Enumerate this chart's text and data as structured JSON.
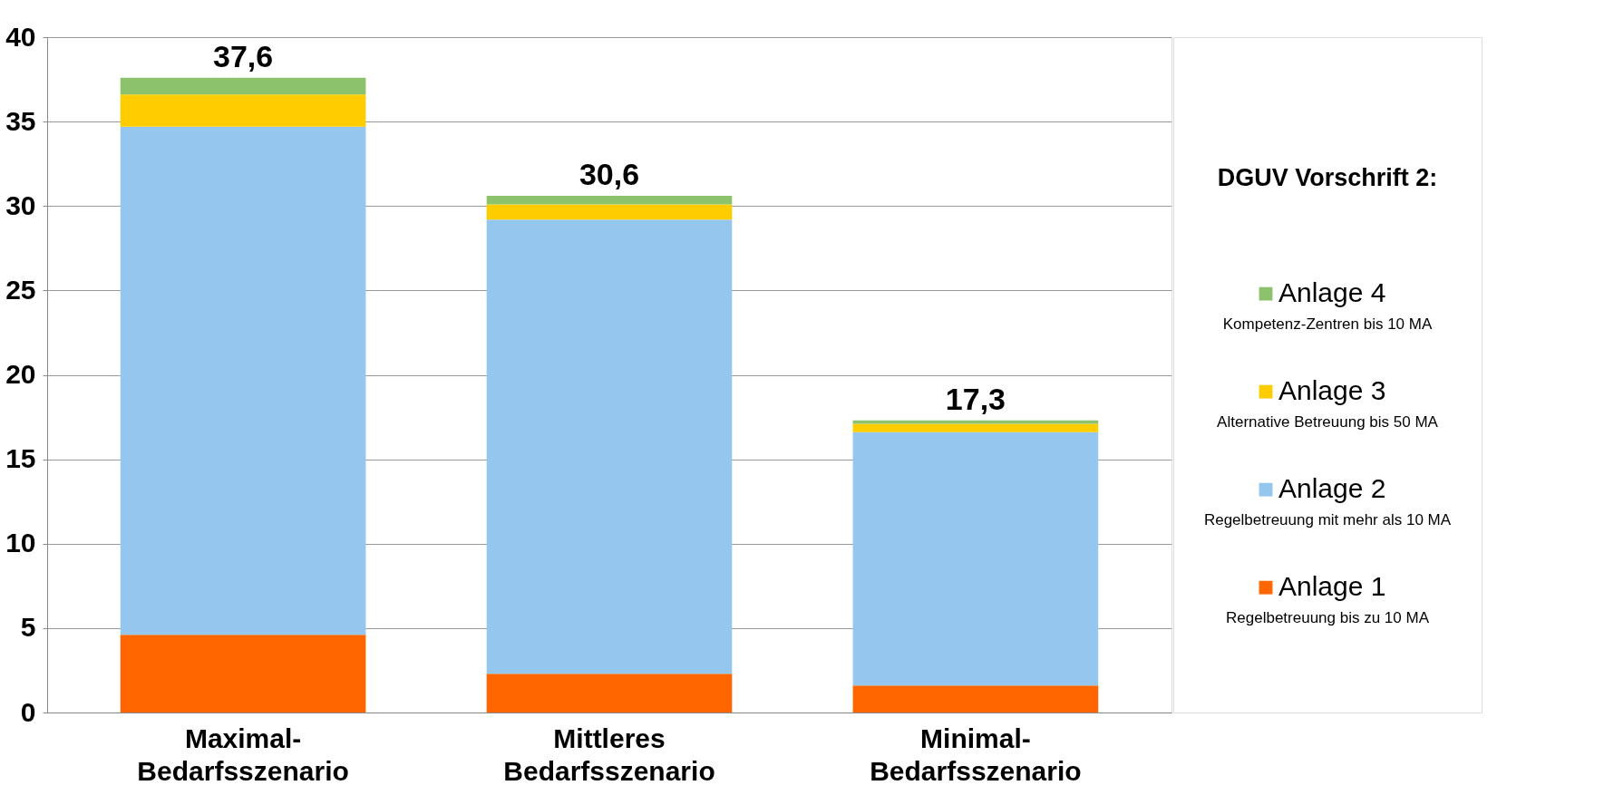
{
  "chart_data": {
    "type": "bar",
    "stacked": true,
    "categories": [
      "Maximal-Bedarfsszenario",
      "Mittleres Bedarfsszenario",
      "Minimal-Bedarfsszenario"
    ],
    "series": [
      {
        "name": "Anlage 1",
        "color": "#ff6600",
        "values": [
          4.6,
          2.3,
          1.6
        ]
      },
      {
        "name": "Anlage 2",
        "color": "#95c6ee",
        "values": [
          30.1,
          26.9,
          15.0
        ]
      },
      {
        "name": "Anlage 3",
        "color": "#ffcc00",
        "values": [
          1.9,
          0.9,
          0.5
        ]
      },
      {
        "name": "Anlage 4",
        "color": "#8cc26b",
        "values": [
          1.0,
          0.5,
          0.2
        ]
      }
    ],
    "totals": [
      "37,6",
      "30,6",
      "17,3"
    ],
    "legend_title": "DGUV Vorschrift 2:",
    "annotations": [
      "Regelbetreuung bis zu 10 MA",
      "Regelbetreuung mit mehr als 10 MA",
      "Alternative Betreuung bis 50 MA",
      "Kompetenz-Zentren bis 10 MA"
    ],
    "ylim": [
      0,
      40
    ],
    "yticks": [
      0,
      5,
      10,
      15,
      20,
      25,
      30,
      35,
      40
    ],
    "grid": "y",
    "legend": "right"
  }
}
